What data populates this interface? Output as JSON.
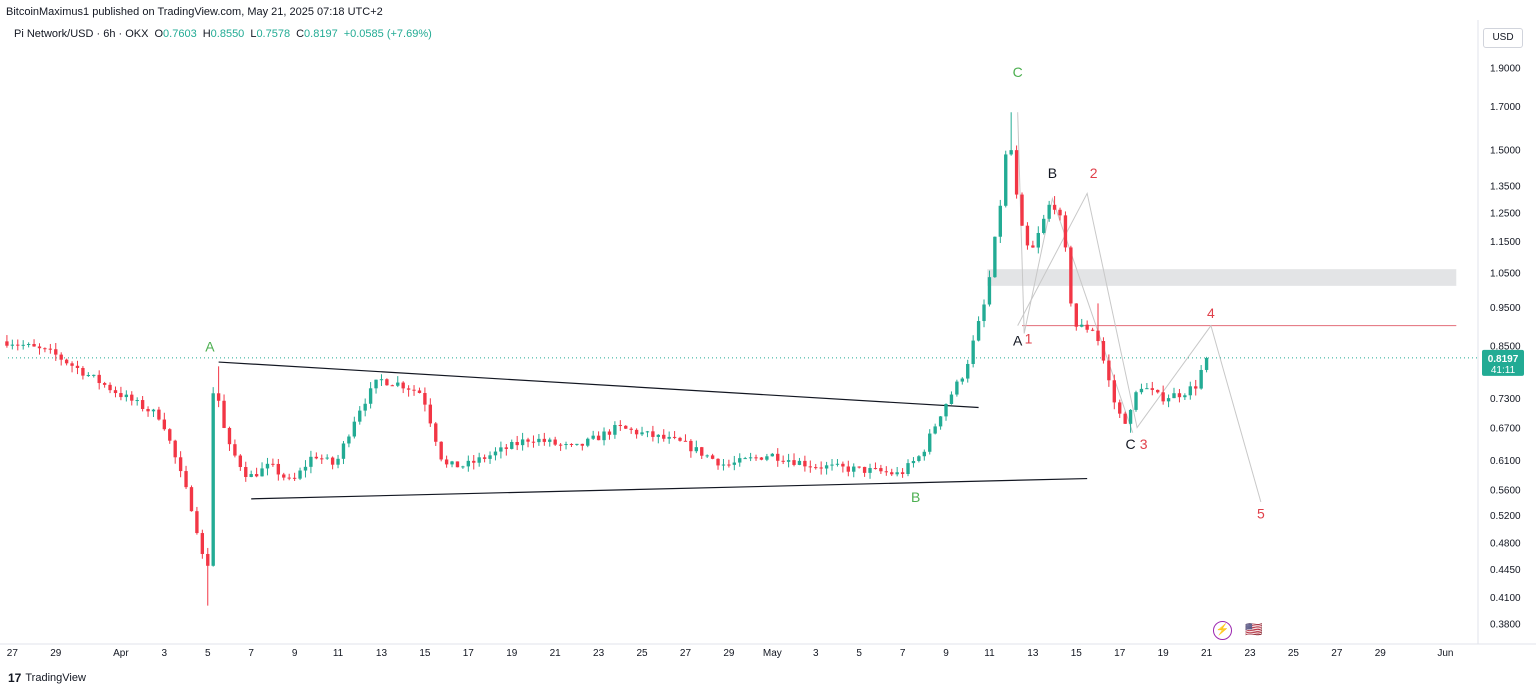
{
  "header": {
    "published": "BitcoinMaximus1 published on TradingView.com, May 21, 2025 07:18 UTC+2"
  },
  "symbol_bar": {
    "name": "Pi Network/USD · 6h · OKX",
    "o_label": "O",
    "o_value": "0.7603",
    "h_label": "H",
    "h_value": "0.8550",
    "l_label": "L",
    "l_value": "0.7578",
    "c_label": "C",
    "c_value": "0.8197",
    "change": "+0.0585 (+7.69%)"
  },
  "currency_button": "USD",
  "footer": {
    "brand": "TradingView",
    "logo": "17"
  },
  "events": {
    "lightning": "⚡",
    "flag": "🇺🇸"
  },
  "colors": {
    "up": "#22ab94",
    "down": "#f23645",
    "price_tag": "#22ab94",
    "wave_green": "#4caf50",
    "wave_red": "#e0404a",
    "wave_black": "#131722"
  },
  "chart_data": {
    "type": "candlestick",
    "timeframe": "6h",
    "y_scale": "log",
    "ylim": [
      0.36,
      2.0
    ],
    "y_ticks": [
      {
        "v": 1.9,
        "label": "1.9000"
      },
      {
        "v": 1.7,
        "label": "1.7000"
      },
      {
        "v": 1.5,
        "label": "1.5000"
      },
      {
        "v": 1.35,
        "label": "1.3500"
      },
      {
        "v": 1.25,
        "label": "1.2500"
      },
      {
        "v": 1.15,
        "label": "1.1500"
      },
      {
        "v": 1.05,
        "label": "1.0500"
      },
      {
        "v": 0.95,
        "label": "0.9500"
      },
      {
        "v": 0.85,
        "label": "0.8500"
      },
      {
        "v": 0.73,
        "label": "0.7300"
      },
      {
        "v": 0.67,
        "label": "0.6700"
      },
      {
        "v": 0.61,
        "label": "0.6100"
      },
      {
        "v": 0.56,
        "label": "0.5600"
      },
      {
        "v": 0.52,
        "label": "0.5200"
      },
      {
        "v": 0.48,
        "label": "0.4800"
      },
      {
        "v": 0.445,
        "label": "0.4450"
      },
      {
        "v": 0.41,
        "label": "0.4100"
      },
      {
        "v": 0.38,
        "label": "0.3800"
      }
    ],
    "x_ticks": [
      {
        "d": "2025-03-27",
        "label": "27"
      },
      {
        "d": "2025-03-29",
        "label": "29"
      },
      {
        "d": "2025-04-01",
        "label": "Apr"
      },
      {
        "d": "2025-04-03",
        "label": "3"
      },
      {
        "d": "2025-04-05",
        "label": "5"
      },
      {
        "d": "2025-04-07",
        "label": "7"
      },
      {
        "d": "2025-04-09",
        "label": "9"
      },
      {
        "d": "2025-04-11",
        "label": "11"
      },
      {
        "d": "2025-04-13",
        "label": "13"
      },
      {
        "d": "2025-04-15",
        "label": "15"
      },
      {
        "d": "2025-04-17",
        "label": "17"
      },
      {
        "d": "2025-04-19",
        "label": "19"
      },
      {
        "d": "2025-04-21",
        "label": "21"
      },
      {
        "d": "2025-04-23",
        "label": "23"
      },
      {
        "d": "2025-04-25",
        "label": "25"
      },
      {
        "d": "2025-04-27",
        "label": "27"
      },
      {
        "d": "2025-04-29",
        "label": "29"
      },
      {
        "d": "2025-05-01",
        "label": "May"
      },
      {
        "d": "2025-05-03",
        "label": "3"
      },
      {
        "d": "2025-05-05",
        "label": "5"
      },
      {
        "d": "2025-05-07",
        "label": "7"
      },
      {
        "d": "2025-05-09",
        "label": "9"
      },
      {
        "d": "2025-05-11",
        "label": "11"
      },
      {
        "d": "2025-05-13",
        "label": "13"
      },
      {
        "d": "2025-05-15",
        "label": "15"
      },
      {
        "d": "2025-05-17",
        "label": "17"
      },
      {
        "d": "2025-05-19",
        "label": "19"
      },
      {
        "d": "2025-05-21",
        "label": "21"
      },
      {
        "d": "2025-05-23",
        "label": "23"
      },
      {
        "d": "2025-05-25",
        "label": "25"
      },
      {
        "d": "2025-05-27",
        "label": "27"
      },
      {
        "d": "2025-05-29",
        "label": "29"
      },
      {
        "d": "2025-06-01",
        "label": "Jun"
      }
    ],
    "last_price": {
      "value": 0.8197,
      "label": "0.8197",
      "countdown": "41:11"
    },
    "key_points": [
      [
        "2025-03-27",
        0.86
      ],
      [
        "2025-03-29",
        0.83
      ],
      [
        "2025-04-01",
        0.74
      ],
      [
        "2025-04-03",
        0.69
      ],
      [
        "2025-04-04.5",
        0.52
      ],
      [
        "2025-04-05.1",
        0.43
      ],
      [
        "2025-04-05.4",
        0.78
      ],
      [
        "2025-04-06",
        0.64
      ],
      [
        "2025-04-07",
        0.58
      ],
      [
        "2025-04-08",
        0.6
      ],
      [
        "2025-04-09",
        0.57
      ],
      [
        "2025-04-10",
        0.62
      ],
      [
        "2025-04-11",
        0.6
      ],
      [
        "2025-04-12",
        0.7
      ],
      [
        "2025-04-13",
        0.77
      ],
      [
        "2025-04-14",
        0.76
      ],
      [
        "2025-04-15",
        0.74
      ],
      [
        "2025-04-16",
        0.6
      ],
      [
        "2025-04-17",
        0.6
      ],
      [
        "2025-04-20",
        0.65
      ],
      [
        "2025-04-22",
        0.63
      ],
      [
        "2025-04-24",
        0.67
      ],
      [
        "2025-04-27",
        0.64
      ],
      [
        "2025-04-29",
        0.6
      ],
      [
        "2025-05-01",
        0.62
      ],
      [
        "2025-05-03",
        0.6
      ],
      [
        "2025-05-06",
        0.59
      ],
      [
        "2025-05-07",
        0.585
      ],
      [
        "2025-05-08",
        0.62
      ],
      [
        "2025-05-09",
        0.71
      ],
      [
        "2025-05-10",
        0.79
      ],
      [
        "2025-05-11",
        0.98
      ],
      [
        "2025-05-11.75",
        1.35
      ],
      [
        "2025-05-12",
        1.6
      ],
      [
        "2025-05-12.5",
        1.22
      ],
      [
        "2025-05-13",
        1.1
      ],
      [
        "2025-05-14",
        1.3
      ],
      [
        "2025-05-14.5",
        1.2
      ],
      [
        "2025-05-15",
        0.9
      ],
      [
        "2025-05-16",
        0.89
      ],
      [
        "2025-05-17",
        0.7
      ],
      [
        "2025-05-17.5",
        0.68
      ],
      [
        "2025-05-18",
        0.76
      ],
      [
        "2025-05-19",
        0.73
      ],
      [
        "2025-05-20",
        0.74
      ],
      [
        "2025-05-20.75",
        0.76
      ],
      [
        "2025-05-21",
        0.8197
      ]
    ],
    "notable_highs": [
      [
        "2025-04-05.4",
        0.8
      ],
      [
        "2025-05-12",
        1.67
      ],
      [
        "2025-05-14",
        1.31
      ],
      [
        "2025-05-16",
        0.96
      ]
    ],
    "notable_lows": [
      [
        "2025-04-05",
        0.4
      ],
      [
        "2025-05-17.5",
        0.66
      ]
    ],
    "drawings": {
      "triangle_upper": [
        [
          "2025-04-05.5",
          0.81
        ],
        [
          "2025-05-10.5",
          0.71
        ]
      ],
      "triangle_lower": [
        [
          "2025-04-07",
          0.545
        ],
        [
          "2025-05-15.5",
          0.578
        ]
      ],
      "resistance_zone": {
        "from": "2025-05-10.9",
        "to": "2025-06-01.5",
        "low": 1.01,
        "high": 1.06
      },
      "resistance_line": {
        "from": "2025-05-12.5",
        "to": "2025-06-01.5",
        "value": 0.9
      },
      "projection_path": [
        [
          "2025-05-12.3",
          0.9
        ],
        [
          "2025-05-15.5",
          1.32
        ],
        [
          "2025-05-17.8",
          0.67
        ],
        [
          "2025-05-21.2",
          0.9
        ],
        [
          "2025-05-23.5",
          0.54
        ]
      ],
      "abc_path": [
        [
          "2025-05-12.3",
          1.67
        ],
        [
          "2025-05-12.6",
          0.88
        ],
        [
          "2025-05-13.9",
          1.3
        ],
        [
          "2025-05-17.6",
          0.66
        ]
      ]
    },
    "wave_labels": [
      {
        "text": "A",
        "d": "2025-04-05.1",
        "v": 0.835,
        "color": "wave_green"
      },
      {
        "text": "B",
        "d": "2025-05-07.6",
        "v": 0.54,
        "color": "wave_green"
      },
      {
        "text": "C",
        "d": "2025-05-12.3",
        "v": 1.85,
        "color": "wave_green"
      },
      {
        "text": "A",
        "d": "2025-05-12.3",
        "v": 0.85,
        "color": "wave_black"
      },
      {
        "text": "B",
        "d": "2025-05-13.9",
        "v": 1.38,
        "color": "wave_black"
      },
      {
        "text": "C",
        "d": "2025-05-17.5",
        "v": 0.63,
        "color": "wave_black"
      },
      {
        "text": "1",
        "d": "2025-05-12.8",
        "v": 0.855,
        "color": "wave_red"
      },
      {
        "text": "2",
        "d": "2025-05-15.8",
        "v": 1.38,
        "color": "wave_red"
      },
      {
        "text": "3",
        "d": "2025-05-18.1",
        "v": 0.63,
        "color": "wave_red"
      },
      {
        "text": "4",
        "d": "2025-05-21.2",
        "v": 0.92,
        "color": "wave_red"
      },
      {
        "text": "5",
        "d": "2025-05-23.5",
        "v": 0.515,
        "color": "wave_red"
      }
    ]
  }
}
